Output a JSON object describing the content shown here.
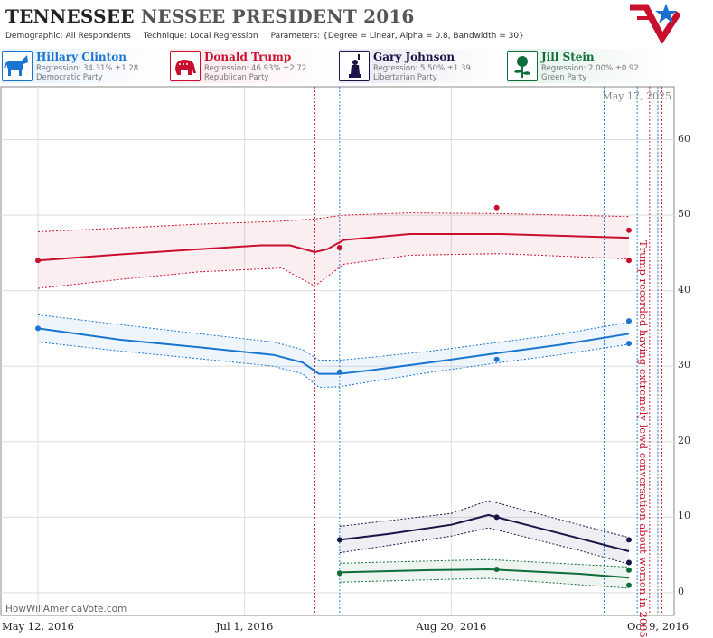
{
  "header": {
    "title_bold": "TENNESSEE",
    "title_rest": "NESSEE PRESIDENT 2016",
    "demographic_label": "Demographic:",
    "demographic_value": "All Respondents",
    "technique_label": "Technique:",
    "technique_value": "Local Regression",
    "parameters_label": "Parameters:",
    "parameters_value": "{Degree = Linear, Alpha = 0.8, Bandwidth = 30}"
  },
  "candidates": [
    {
      "name": "Hillary Clinton",
      "regression": "Regression: 34.31% ±1.28",
      "party": "Democratic Party",
      "color": "#1a75d1",
      "icon": "donkey-icon"
    },
    {
      "name": "Donald Trump",
      "regression": "Regression: 46.93% ±2.72",
      "party": "Republican Party",
      "color": "#c8102e",
      "icon": "elephant-icon"
    },
    {
      "name": "Gary Johnson",
      "regression": "Regression: 5.50% ±1.39",
      "party": "Libertarian Party",
      "color": "#1a1448",
      "icon": "liberty-icon"
    },
    {
      "name": "Jill Stein",
      "regression": "Regression: 2.00% ±0.92",
      "party": "Green Party",
      "color": "#0e6e3a",
      "icon": "rose-icon"
    }
  ],
  "date_stamp": "May 17, 2025",
  "watermark": "HowWillAmericaVote.com",
  "annotation": "Trump recorded having extremely lewd conversation about women in 2005",
  "chart_data": {
    "type": "line",
    "title": "",
    "xlabel": "",
    "ylabel": "",
    "ylim": [
      -3,
      67
    ],
    "yticks": [
      0,
      10,
      20,
      30,
      40,
      50,
      60
    ],
    "xlim": [
      "2016-05-12",
      "2016-10-09"
    ],
    "xticks": [
      {
        "date": "2016-05-12",
        "label": "May 12, 2016"
      },
      {
        "date": "2016-07-01",
        "label": "Jul 1, 2016"
      },
      {
        "date": "2016-08-20",
        "label": "Aug 20, 2016"
      },
      {
        "date": "2016-10-09",
        "label": "Oct 9, 2016"
      }
    ],
    "grid": true,
    "event_lines": [
      {
        "date": "2016-07-18",
        "color": "#c8102e"
      },
      {
        "date": "2016-07-24",
        "color": "#1a75d1"
      },
      {
        "date": "2016-09-26",
        "color": "#1a75d1"
      },
      {
        "date": "2016-10-04",
        "color": "#1a75d1"
      },
      {
        "date": "2016-10-07",
        "color": "#c8102e"
      },
      {
        "date": "2016-10-09",
        "color": "#1a75d1"
      },
      {
        "date": "2016-10-10",
        "color": "#c8102e"
      }
    ],
    "series": [
      {
        "name": "Hillary Clinton",
        "color": "#1a75d1",
        "trend": [
          [
            "2016-05-12",
            35
          ],
          [
            "2016-06-01",
            33.5
          ],
          [
            "2016-06-20",
            32.5
          ],
          [
            "2016-07-08",
            31.5
          ],
          [
            "2016-07-15",
            30.5
          ],
          [
            "2016-07-19",
            29
          ],
          [
            "2016-07-24",
            29
          ],
          [
            "2016-08-01",
            29.5
          ],
          [
            "2016-08-15",
            30.5
          ],
          [
            "2016-09-01",
            31.8
          ],
          [
            "2016-09-15",
            32.8
          ],
          [
            "2016-10-02",
            34.3
          ]
        ],
        "upper": [
          [
            "2016-05-12",
            36.8
          ],
          [
            "2016-06-01",
            35.5
          ],
          [
            "2016-06-20",
            34.3
          ],
          [
            "2016-07-08",
            33.2
          ],
          [
            "2016-07-15",
            32.2
          ],
          [
            "2016-07-19",
            30.8
          ],
          [
            "2016-07-24",
            30.8
          ],
          [
            "2016-08-01",
            31.2
          ],
          [
            "2016-08-15",
            32.0
          ],
          [
            "2016-09-01",
            33.2
          ],
          [
            "2016-09-15",
            34.2
          ],
          [
            "2016-10-02",
            35.8
          ]
        ],
        "lower": [
          [
            "2016-05-12",
            33.2
          ],
          [
            "2016-06-01",
            32.0
          ],
          [
            "2016-06-20",
            31.0
          ],
          [
            "2016-07-08",
            30.0
          ],
          [
            "2016-07-15",
            29.0
          ],
          [
            "2016-07-19",
            27.2
          ],
          [
            "2016-07-24",
            27.3
          ],
          [
            "2016-08-01",
            28.0
          ],
          [
            "2016-08-15",
            29.2
          ],
          [
            "2016-09-01",
            30.5
          ],
          [
            "2016-09-15",
            31.5
          ],
          [
            "2016-10-02",
            32.9
          ]
        ],
        "points": [
          [
            "2016-05-12",
            35
          ],
          [
            "2016-07-24",
            29.2
          ],
          [
            "2016-08-31",
            30.9
          ],
          [
            "2016-10-02",
            36
          ],
          [
            "2016-10-02",
            33
          ]
        ]
      },
      {
        "name": "Donald Trump",
        "color": "#c8102e",
        "trend": [
          [
            "2016-05-12",
            44
          ],
          [
            "2016-06-01",
            44.8
          ],
          [
            "2016-06-20",
            45.5
          ],
          [
            "2016-07-05",
            46
          ],
          [
            "2016-07-12",
            46
          ],
          [
            "2016-07-18",
            45.1
          ],
          [
            "2016-07-21",
            45.5
          ],
          [
            "2016-07-25",
            46.7
          ],
          [
            "2016-08-10",
            47.5
          ],
          [
            "2016-09-01",
            47.5
          ],
          [
            "2016-10-02",
            47
          ]
        ],
        "upper": [
          [
            "2016-05-12",
            47.8
          ],
          [
            "2016-06-01",
            48.3
          ],
          [
            "2016-06-20",
            48.8
          ],
          [
            "2016-07-10",
            49.2
          ],
          [
            "2016-07-18",
            49.5
          ],
          [
            "2016-07-25",
            50.0
          ],
          [
            "2016-08-10",
            50.3
          ],
          [
            "2016-09-01",
            50.2
          ],
          [
            "2016-10-02",
            49.8
          ]
        ],
        "lower": [
          [
            "2016-05-12",
            40.3
          ],
          [
            "2016-06-01",
            41.5
          ],
          [
            "2016-06-20",
            42.5
          ],
          [
            "2016-07-10",
            43.0
          ],
          [
            "2016-07-18",
            40.6
          ],
          [
            "2016-07-25",
            43.5
          ],
          [
            "2016-08-10",
            44.7
          ],
          [
            "2016-09-01",
            44.9
          ],
          [
            "2016-10-02",
            44.2
          ]
        ],
        "points": [
          [
            "2016-05-12",
            44
          ],
          [
            "2016-07-24",
            45.7
          ],
          [
            "2016-08-31",
            51
          ],
          [
            "2016-10-02",
            48
          ],
          [
            "2016-10-02",
            44
          ]
        ]
      },
      {
        "name": "Gary Johnson",
        "color": "#1a1448",
        "trend": [
          [
            "2016-07-24",
            7
          ],
          [
            "2016-08-05",
            7.8
          ],
          [
            "2016-08-20",
            9
          ],
          [
            "2016-08-29",
            10.3
          ],
          [
            "2016-09-05",
            9.3
          ],
          [
            "2016-09-20",
            7.2
          ],
          [
            "2016-10-02",
            5.5
          ]
        ],
        "upper": [
          [
            "2016-07-24",
            8.8
          ],
          [
            "2016-08-20",
            10.5
          ],
          [
            "2016-08-29",
            12.2
          ],
          [
            "2016-09-20",
            9.0
          ],
          [
            "2016-10-02",
            7.3
          ]
        ],
        "lower": [
          [
            "2016-07-24",
            5.3
          ],
          [
            "2016-08-20",
            7.5
          ],
          [
            "2016-08-29",
            8.6
          ],
          [
            "2016-09-20",
            5.6
          ],
          [
            "2016-10-02",
            3.8
          ]
        ],
        "points": [
          [
            "2016-07-24",
            7
          ],
          [
            "2016-08-31",
            10
          ],
          [
            "2016-10-02",
            7
          ],
          [
            "2016-10-02",
            4
          ]
        ]
      },
      {
        "name": "Jill Stein",
        "color": "#0e6e3a",
        "trend": [
          [
            "2016-07-24",
            2.7
          ],
          [
            "2016-08-15",
            3.0
          ],
          [
            "2016-08-29",
            3.1
          ],
          [
            "2016-09-20",
            2.5
          ],
          [
            "2016-10-02",
            2.0
          ]
        ],
        "upper": [
          [
            "2016-07-24",
            3.9
          ],
          [
            "2016-08-29",
            4.4
          ],
          [
            "2016-10-02",
            3.4
          ]
        ],
        "lower": [
          [
            "2016-07-24",
            1.4
          ],
          [
            "2016-08-29",
            1.9
          ],
          [
            "2016-10-02",
            0.6
          ]
        ],
        "points": [
          [
            "2016-07-24",
            2.6
          ],
          [
            "2016-08-31",
            3.1
          ],
          [
            "2016-10-02",
            3
          ],
          [
            "2016-10-02",
            1
          ]
        ]
      }
    ]
  }
}
